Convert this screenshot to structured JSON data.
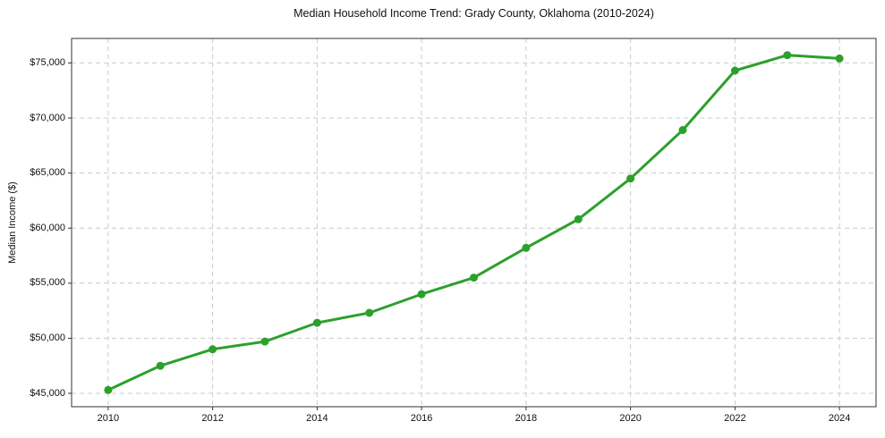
{
  "figure": {
    "background": "#ffffff",
    "text_color": "#111111",
    "spine_color": "#333333",
    "grid_color": "#cccccc"
  },
  "chart_data": {
    "type": "line",
    "title": "Median Household Income Trend: Grady County, Oklahoma (2010-2024)",
    "xlabel": "",
    "ylabel": "Median Income ($)",
    "x": [
      2010,
      2011,
      2012,
      2013,
      2014,
      2015,
      2016,
      2017,
      2018,
      2019,
      2020,
      2021,
      2022,
      2023,
      2024
    ],
    "series": [
      {
        "name": "Median Household Income",
        "values": [
          45300,
          47500,
          49000,
          49700,
          51400,
          52300,
          54000,
          55500,
          58200,
          60800,
          64500,
          68900,
          74300,
          75700,
          75400
        ]
      }
    ],
    "line_color": "#2ca02c",
    "marker": "circle",
    "marker_radius": 4.5,
    "line_width": 3,
    "grid": true,
    "grid_style": "dashed",
    "legend": "none",
    "xlim": [
      2009.3,
      2024.7
    ],
    "ylim": [
      43780,
      77220
    ],
    "x_ticks": [
      {
        "value": 2010,
        "label": "2010"
      },
      {
        "value": 2012,
        "label": "2012"
      },
      {
        "value": 2014,
        "label": "2014"
      },
      {
        "value": 2016,
        "label": "2016"
      },
      {
        "value": 2018,
        "label": "2018"
      },
      {
        "value": 2020,
        "label": "2020"
      },
      {
        "value": 2022,
        "label": "2022"
      },
      {
        "value": 2024,
        "label": "2024"
      }
    ],
    "y_ticks": [
      {
        "value": 45000,
        "label": "$45,000"
      },
      {
        "value": 50000,
        "label": "$50,000"
      },
      {
        "value": 55000,
        "label": "$55,000"
      },
      {
        "value": 60000,
        "label": "$60,000"
      },
      {
        "value": 65000,
        "label": "$65,000"
      },
      {
        "value": 70000,
        "label": "$70,000"
      },
      {
        "value": 75000,
        "label": "$75,000"
      }
    ]
  }
}
